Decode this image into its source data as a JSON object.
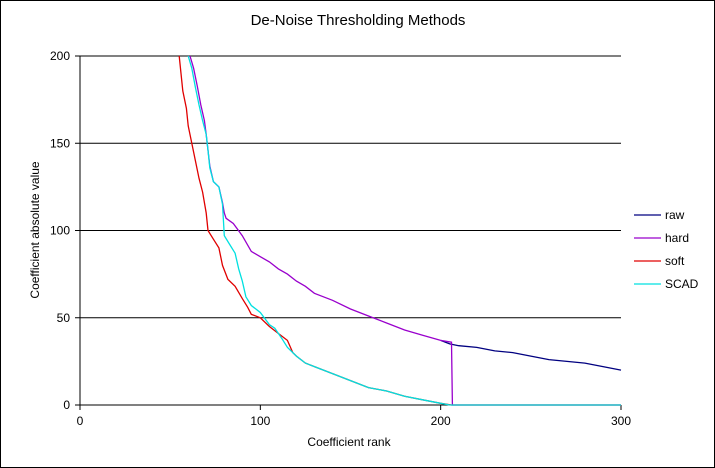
{
  "chart_data": {
    "type": "line",
    "title": "De-Noise  Thresholding  Methods",
    "xlabel": "Coefficient  rank",
    "ylabel": "Coefficient  absolute value",
    "xlim": [
      0,
      300
    ],
    "ylim": [
      0,
      200
    ],
    "x_ticks": [
      0,
      100,
      200,
      300
    ],
    "y_ticks": [
      0,
      50,
      100,
      150,
      200
    ],
    "x_tick_labels": [
      "0",
      "100",
      "200",
      "300"
    ],
    "y_tick_labels": [
      "0",
      "50",
      "100",
      "150",
      "200"
    ],
    "grid": "horizontal major gridlines on",
    "legend_position": "right",
    "series": [
      {
        "name": "raw",
        "color": "#000080",
        "points": [
          [
            200,
            37
          ],
          [
            205,
            35
          ],
          [
            210,
            34
          ],
          [
            220,
            33
          ],
          [
            230,
            31
          ],
          [
            240,
            30
          ],
          [
            250,
            28
          ],
          [
            260,
            26
          ],
          [
            270,
            25
          ],
          [
            280,
            24
          ],
          [
            290,
            22
          ],
          [
            300,
            20
          ]
        ]
      },
      {
        "name": "hard",
        "color": "#9900cc",
        "points": [
          [
            61,
            200
          ],
          [
            63,
            193
          ],
          [
            65,
            183
          ],
          [
            67,
            172
          ],
          [
            69,
            163
          ],
          [
            70,
            155
          ],
          [
            71,
            146
          ],
          [
            72,
            137
          ],
          [
            74,
            128
          ],
          [
            77,
            125
          ],
          [
            79,
            116
          ],
          [
            80,
            110
          ],
          [
            81,
            107
          ],
          [
            85,
            104
          ],
          [
            90,
            97
          ],
          [
            95,
            88
          ],
          [
            100,
            85
          ],
          [
            105,
            82
          ],
          [
            110,
            78
          ],
          [
            115,
            75
          ],
          [
            120,
            71
          ],
          [
            125,
            68
          ],
          [
            130,
            64
          ],
          [
            140,
            60
          ],
          [
            150,
            55
          ],
          [
            160,
            51
          ],
          [
            170,
            47
          ],
          [
            180,
            43
          ],
          [
            190,
            40
          ],
          [
            200,
            37
          ],
          [
            206,
            36
          ],
          [
            206.5,
            0
          ],
          [
            300,
            0
          ]
        ]
      },
      {
        "name": "soft",
        "color": "#e00000",
        "points": [
          [
            55,
            200
          ],
          [
            56,
            190
          ],
          [
            57,
            180
          ],
          [
            59,
            170
          ],
          [
            60,
            160
          ],
          [
            62,
            150
          ],
          [
            64,
            140
          ],
          [
            66,
            130
          ],
          [
            68,
            122
          ],
          [
            70,
            110
          ],
          [
            71,
            100
          ],
          [
            74,
            95
          ],
          [
            77,
            90
          ],
          [
            79,
            80
          ],
          [
            82,
            72
          ],
          [
            86,
            68
          ],
          [
            90,
            61
          ],
          [
            93,
            56
          ],
          [
            95,
            52
          ],
          [
            100,
            50
          ],
          [
            105,
            45
          ],
          [
            110,
            41
          ],
          [
            115,
            37
          ],
          [
            118,
            30
          ],
          [
            120,
            28
          ],
          [
            125,
            24
          ],
          [
            130,
            22
          ],
          [
            140,
            18
          ],
          [
            150,
            14
          ],
          [
            160,
            10
          ],
          [
            170,
            8
          ],
          [
            180,
            5
          ],
          [
            190,
            3
          ],
          [
            200,
            1
          ],
          [
            206,
            0
          ],
          [
            300,
            0
          ]
        ]
      },
      {
        "name": "SCAD",
        "color": "#00e0e0",
        "points": [
          [
            60,
            200
          ],
          [
            62,
            193
          ],
          [
            64,
            182
          ],
          [
            66,
            172
          ],
          [
            68,
            163
          ],
          [
            70,
            155
          ],
          [
            71,
            146
          ],
          [
            72,
            136
          ],
          [
            74,
            128
          ],
          [
            77,
            125
          ],
          [
            79,
            115
          ],
          [
            80,
            97
          ],
          [
            83,
            92
          ],
          [
            86,
            87
          ],
          [
            88,
            78
          ],
          [
            90,
            71
          ],
          [
            92,
            62
          ],
          [
            95,
            57
          ],
          [
            100,
            53
          ],
          [
            105,
            46
          ],
          [
            108,
            44
          ],
          [
            112,
            38
          ],
          [
            115,
            33
          ],
          [
            118,
            30
          ],
          [
            120,
            28
          ],
          [
            125,
            24
          ],
          [
            130,
            22
          ],
          [
            140,
            18
          ],
          [
            150,
            14
          ],
          [
            160,
            10
          ],
          [
            170,
            8
          ],
          [
            180,
            5
          ],
          [
            190,
            3
          ],
          [
            200,
            1
          ],
          [
            205,
            0
          ],
          [
            300,
            0
          ]
        ]
      }
    ]
  }
}
